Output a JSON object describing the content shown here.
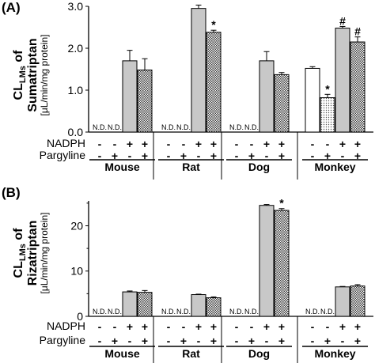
{
  "chart_data": [
    {
      "type": "bar",
      "panel_label": "(A)",
      "ylabel_main": "CL",
      "ylabel_sub": "LMs",
      "ylabel_of": " of",
      "ylabel_drug": "Sumatriptan",
      "ylabel_unit": "[μL/min/mg protein]",
      "ylim": [
        0,
        3.0
      ],
      "yticks": [
        {
          "value": 0,
          "label": "0.0"
        },
        {
          "value": 1,
          "label": "1.0"
        },
        {
          "value": 2,
          "label": "2.0"
        },
        {
          "value": 3,
          "label": "3.0"
        }
      ],
      "species": [
        "Mouse",
        "Rat",
        "Dog",
        "Monkey"
      ],
      "conditions": [
        {
          "nadph": "-",
          "pargyline": "-"
        },
        {
          "nadph": "-",
          "pargyline": "+"
        },
        {
          "nadph": "+",
          "pargyline": "-"
        },
        {
          "nadph": "+",
          "pargyline": "+"
        }
      ],
      "row_labels": {
        "nadph": "NADPH",
        "pargyline": "Pargyline"
      },
      "nd_label": "N.D.",
      "bars": [
        {
          "species": "Mouse",
          "condition": 0,
          "value": null,
          "error": null,
          "label": "N.D."
        },
        {
          "species": "Mouse",
          "condition": 1,
          "value": null,
          "error": null,
          "label": "N.D."
        },
        {
          "species": "Mouse",
          "condition": 2,
          "value": 1.7,
          "error": 0.25,
          "label": ""
        },
        {
          "species": "Mouse",
          "condition": 3,
          "value": 1.48,
          "error": 0.27,
          "label": ""
        },
        {
          "species": "Rat",
          "condition": 0,
          "value": null,
          "error": null,
          "label": "N.D."
        },
        {
          "species": "Rat",
          "condition": 1,
          "value": null,
          "error": null,
          "label": "N.D."
        },
        {
          "species": "Rat",
          "condition": 2,
          "value": 2.95,
          "error": 0.08,
          "label": ""
        },
        {
          "species": "Rat",
          "condition": 3,
          "value": 2.38,
          "error": 0.05,
          "label": "*"
        },
        {
          "species": "Dog",
          "condition": 0,
          "value": null,
          "error": null,
          "label": "N.D."
        },
        {
          "species": "Dog",
          "condition": 1,
          "value": null,
          "error": null,
          "label": "N.D."
        },
        {
          "species": "Dog",
          "condition": 2,
          "value": 1.7,
          "error": 0.22,
          "label": ""
        },
        {
          "species": "Dog",
          "condition": 3,
          "value": 1.37,
          "error": 0.05,
          "label": ""
        },
        {
          "species": "Monkey",
          "condition": 0,
          "value": 1.52,
          "error": 0.04,
          "label": ""
        },
        {
          "species": "Monkey",
          "condition": 1,
          "value": 0.82,
          "error": 0.08,
          "label": "*"
        },
        {
          "species": "Monkey",
          "condition": 2,
          "value": 2.48,
          "error": 0.04,
          "label": "#"
        },
        {
          "species": "Monkey",
          "condition": 3,
          "value": 2.15,
          "error": 0.12,
          "label": "#"
        }
      ]
    },
    {
      "type": "bar",
      "panel_label": "(B)",
      "ylabel_main": "CL",
      "ylabel_sub": "LMs",
      "ylabel_of": " of",
      "ylabel_drug": "Rizatriptan",
      "ylabel_unit": "[μL/min/mg protein]",
      "ylim": [
        0,
        25.5
      ],
      "yticks": [
        {
          "value": 0,
          "label": "0"
        },
        {
          "value": 10,
          "label": "10"
        },
        {
          "value": 20,
          "label": "20"
        }
      ],
      "species": [
        "Mouse",
        "Rat",
        "Dog",
        "Monkey"
      ],
      "conditions": [
        {
          "nadph": "-",
          "pargyline": "-"
        },
        {
          "nadph": "-",
          "pargyline": "+"
        },
        {
          "nadph": "+",
          "pargyline": "-"
        },
        {
          "nadph": "+",
          "pargyline": "+"
        }
      ],
      "row_labels": {
        "nadph": "NADPH",
        "pargyline": "Pargyline"
      },
      "nd_label": "N.D.",
      "bars": [
        {
          "species": "Mouse",
          "condition": 0,
          "value": null,
          "error": null,
          "label": "N.D."
        },
        {
          "species": "Mouse",
          "condition": 1,
          "value": null,
          "error": null,
          "label": "N.D."
        },
        {
          "species": "Mouse",
          "condition": 2,
          "value": 5.4,
          "error": 0.2,
          "label": ""
        },
        {
          "species": "Mouse",
          "condition": 3,
          "value": 5.3,
          "error": 0.4,
          "label": ""
        },
        {
          "species": "Rat",
          "condition": 0,
          "value": null,
          "error": null,
          "label": "N.D."
        },
        {
          "species": "Rat",
          "condition": 1,
          "value": null,
          "error": null,
          "label": "N.D."
        },
        {
          "species": "Rat",
          "condition": 2,
          "value": 4.8,
          "error": 0.1,
          "label": ""
        },
        {
          "species": "Rat",
          "condition": 3,
          "value": 4.1,
          "error": 0.2,
          "label": ""
        },
        {
          "species": "Dog",
          "condition": 0,
          "value": null,
          "error": null,
          "label": "N.D."
        },
        {
          "species": "Dog",
          "condition": 1,
          "value": null,
          "error": null,
          "label": "N.D."
        },
        {
          "species": "Dog",
          "condition": 2,
          "value": 24.5,
          "error": 0.2,
          "label": ""
        },
        {
          "species": "Dog",
          "condition": 3,
          "value": 23.4,
          "error": 0.4,
          "label": "*"
        },
        {
          "species": "Monkey",
          "condition": 0,
          "value": null,
          "error": null,
          "label": "N.D."
        },
        {
          "species": "Monkey",
          "condition": 1,
          "value": null,
          "error": null,
          "label": "N.D."
        },
        {
          "species": "Monkey",
          "condition": 2,
          "value": 6.5,
          "error": 0.1,
          "label": ""
        },
        {
          "species": "Monkey",
          "condition": 3,
          "value": 6.7,
          "error": 0.3,
          "label": ""
        }
      ]
    }
  ],
  "colors": {
    "axis": "#000000",
    "bar_outline": "#000000",
    "fill_plain": "#ffffff",
    "fill_pargyline_only": "#bdbdbd",
    "fill_nadph": "#c8c8c8",
    "fill_nadph_pargyline": "#5a5a5a"
  }
}
